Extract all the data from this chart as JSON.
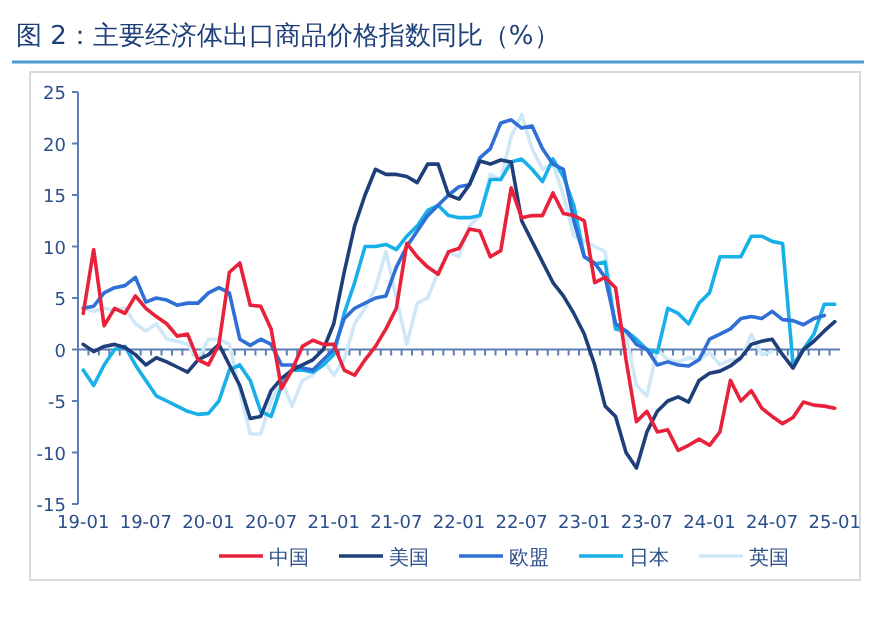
{
  "chart_data": {
    "type": "line",
    "title": "图 2：主要经济体出口商品价格指数同比（%）",
    "categories": [
      "19-01",
      null,
      null,
      null,
      null,
      null,
      "19-07",
      null,
      null,
      null,
      null,
      null,
      "20-01",
      null,
      null,
      null,
      null,
      null,
      "20-07",
      null,
      null,
      null,
      null,
      null,
      "21-01",
      null,
      null,
      null,
      null,
      null,
      "21-07",
      null,
      null,
      null,
      null,
      null,
      "22-01",
      null,
      null,
      null,
      null,
      null,
      "22-07",
      null,
      null,
      null,
      null,
      null,
      "23-01",
      null,
      null,
      null,
      null,
      null,
      "23-07",
      null,
      null,
      null,
      null,
      null,
      "24-01",
      null,
      null,
      null,
      null,
      null,
      "24-07",
      null,
      null,
      null,
      null,
      null,
      "25-01"
    ],
    "series": [
      {
        "name": "中国",
        "color": "#e8223b",
        "values": [
          3.5,
          9.7,
          2.3,
          4,
          3.5,
          5.2,
          4,
          3.2,
          2.5,
          1.3,
          1.5,
          -1,
          -1.5,
          0.5,
          7.5,
          8.4,
          4.3,
          4.2,
          2,
          -3.8,
          -2,
          0.3,
          0.9,
          0.5,
          0.5,
          -2,
          -2.5,
          -1,
          0.3,
          2,
          4,
          10.3,
          9,
          8,
          7.3,
          9.5,
          9.8,
          11.7,
          11.5,
          9,
          9.6,
          15.7,
          12.8,
          13,
          13,
          15.2,
          13.2,
          13,
          12.5,
          6.5,
          7,
          6,
          -1,
          -7,
          -6,
          -8,
          -7.8,
          -9.8,
          -9.3,
          -8.7,
          -9.3,
          -8,
          -3,
          -5,
          -4,
          -5.7,
          -6.5,
          -7.2,
          -6.6,
          -5.1,
          -5.4,
          -5.5,
          -5.7
        ]
      },
      {
        "name": "美国",
        "color": "#1f3f7a",
        "values": [
          0.5,
          -0.2,
          0.3,
          0.5,
          0.2,
          -0.5,
          -1.5,
          -0.8,
          -1.2,
          -1.7,
          -2.2,
          -1,
          -0.5,
          0.5,
          -1.5,
          -3.5,
          -6.7,
          -6.5,
          -4,
          -2.8,
          -2,
          -1.5,
          -1,
          0,
          2.5,
          7.5,
          12,
          15,
          17.5,
          17,
          17,
          16.8,
          16.2,
          18,
          18,
          15,
          14.6,
          16,
          18.3,
          18,
          18.4,
          18.2,
          12.5,
          10.5,
          8.5,
          6.5,
          5.2,
          3.5,
          1.5,
          -1.5,
          -5.5,
          -6.5,
          -10,
          -11.5,
          -8,
          -6,
          -5,
          -4.6,
          -5.1,
          -3,
          -2.3,
          -2.1,
          -1.6,
          -0.8,
          0.5,
          0.8,
          1,
          -0.5,
          -1.8,
          0,
          0.8,
          1.8,
          2.7
        ]
      },
      {
        "name": "欧盟",
        "color": "#2f6fd6",
        "values": [
          4,
          4.2,
          5.5,
          6,
          6.2,
          7,
          4.6,
          5,
          4.8,
          4.3,
          4.5,
          4.5,
          5.5,
          6,
          5.5,
          1,
          0.4,
          1,
          0.5,
          -1.5,
          -1.5,
          -1.8,
          -2,
          -1,
          0,
          3,
          4,
          4.5,
          5,
          5.2,
          8,
          10,
          11.5,
          13,
          14,
          15,
          15.8,
          16,
          18.6,
          19.5,
          22,
          22.3,
          21.5,
          21.7,
          19.5,
          18,
          17.5,
          12.5,
          9,
          8.4,
          7,
          2.5,
          1.8,
          0.5,
          0,
          -1.5,
          -1.2,
          -1.5,
          -1.6,
          -1,
          1,
          1.5,
          2,
          3,
          3.2,
          3,
          3.7,
          2.9,
          2.8,
          2.4,
          3,
          3.3,
          null
        ]
      },
      {
        "name": "日本",
        "color": "#18b0e8",
        "values": [
          -2,
          -3.5,
          -1.5,
          0,
          0.3,
          -1.5,
          -3,
          -4.5,
          -5,
          -5.5,
          -6,
          -6.3,
          -6.2,
          -5,
          -2,
          -1.5,
          -3,
          -6,
          -6.5,
          -3.5,
          -2,
          -2,
          -2.2,
          -1.5,
          -0.5,
          3.5,
          6.5,
          10,
          10,
          10.2,
          9.7,
          11,
          12,
          13.5,
          14,
          13,
          12.8,
          12.8,
          13,
          16.5,
          16.5,
          18.2,
          18.5,
          17.5,
          16.3,
          18.5,
          16.8,
          14,
          9,
          8.3,
          8.5,
          2,
          1.8,
          1,
          0,
          -0.3,
          4,
          3.5,
          2.5,
          4.5,
          5.5,
          9,
          9,
          9,
          11,
          11,
          10.5,
          10.3,
          -1.5,
          0,
          1.5,
          4.4,
          4.4
        ]
      },
      {
        "name": "英国",
        "color": "#cfe8f8",
        "values": [
          4,
          3.7,
          4,
          3.8,
          4,
          2.5,
          1.8,
          2.5,
          1,
          0.8,
          0.5,
          -1,
          1,
          1,
          0.5,
          -4,
          -8.2,
          -8.2,
          -5,
          -3,
          -5.5,
          -3,
          -2.5,
          -1,
          -2.5,
          -1,
          2.5,
          4,
          6,
          9.5,
          5,
          0.5,
          4.5,
          5,
          7.5,
          9.5,
          9,
          12,
          13,
          17,
          16.5,
          20.7,
          22.8,
          19.5,
          17.5,
          18,
          15,
          11,
          10.5,
          10,
          9.5,
          2,
          1.5,
          -3.5,
          -4.5,
          0,
          -1,
          -1.2,
          -0.8,
          -1,
          -0.3,
          -1.5,
          -1,
          -1,
          1.5,
          -0.5,
          -0.2,
          null,
          null,
          null,
          null,
          null,
          null
        ]
      }
    ],
    "ylim": [
      -15,
      25
    ],
    "yticks": [
      -15,
      -10,
      -5,
      0,
      5,
      10,
      15,
      20,
      25
    ],
    "ref_lines": [
      {
        "axis": "y",
        "value": 0,
        "color": "#5b7fb5"
      }
    ],
    "legend": "bottom",
    "grid": false
  }
}
